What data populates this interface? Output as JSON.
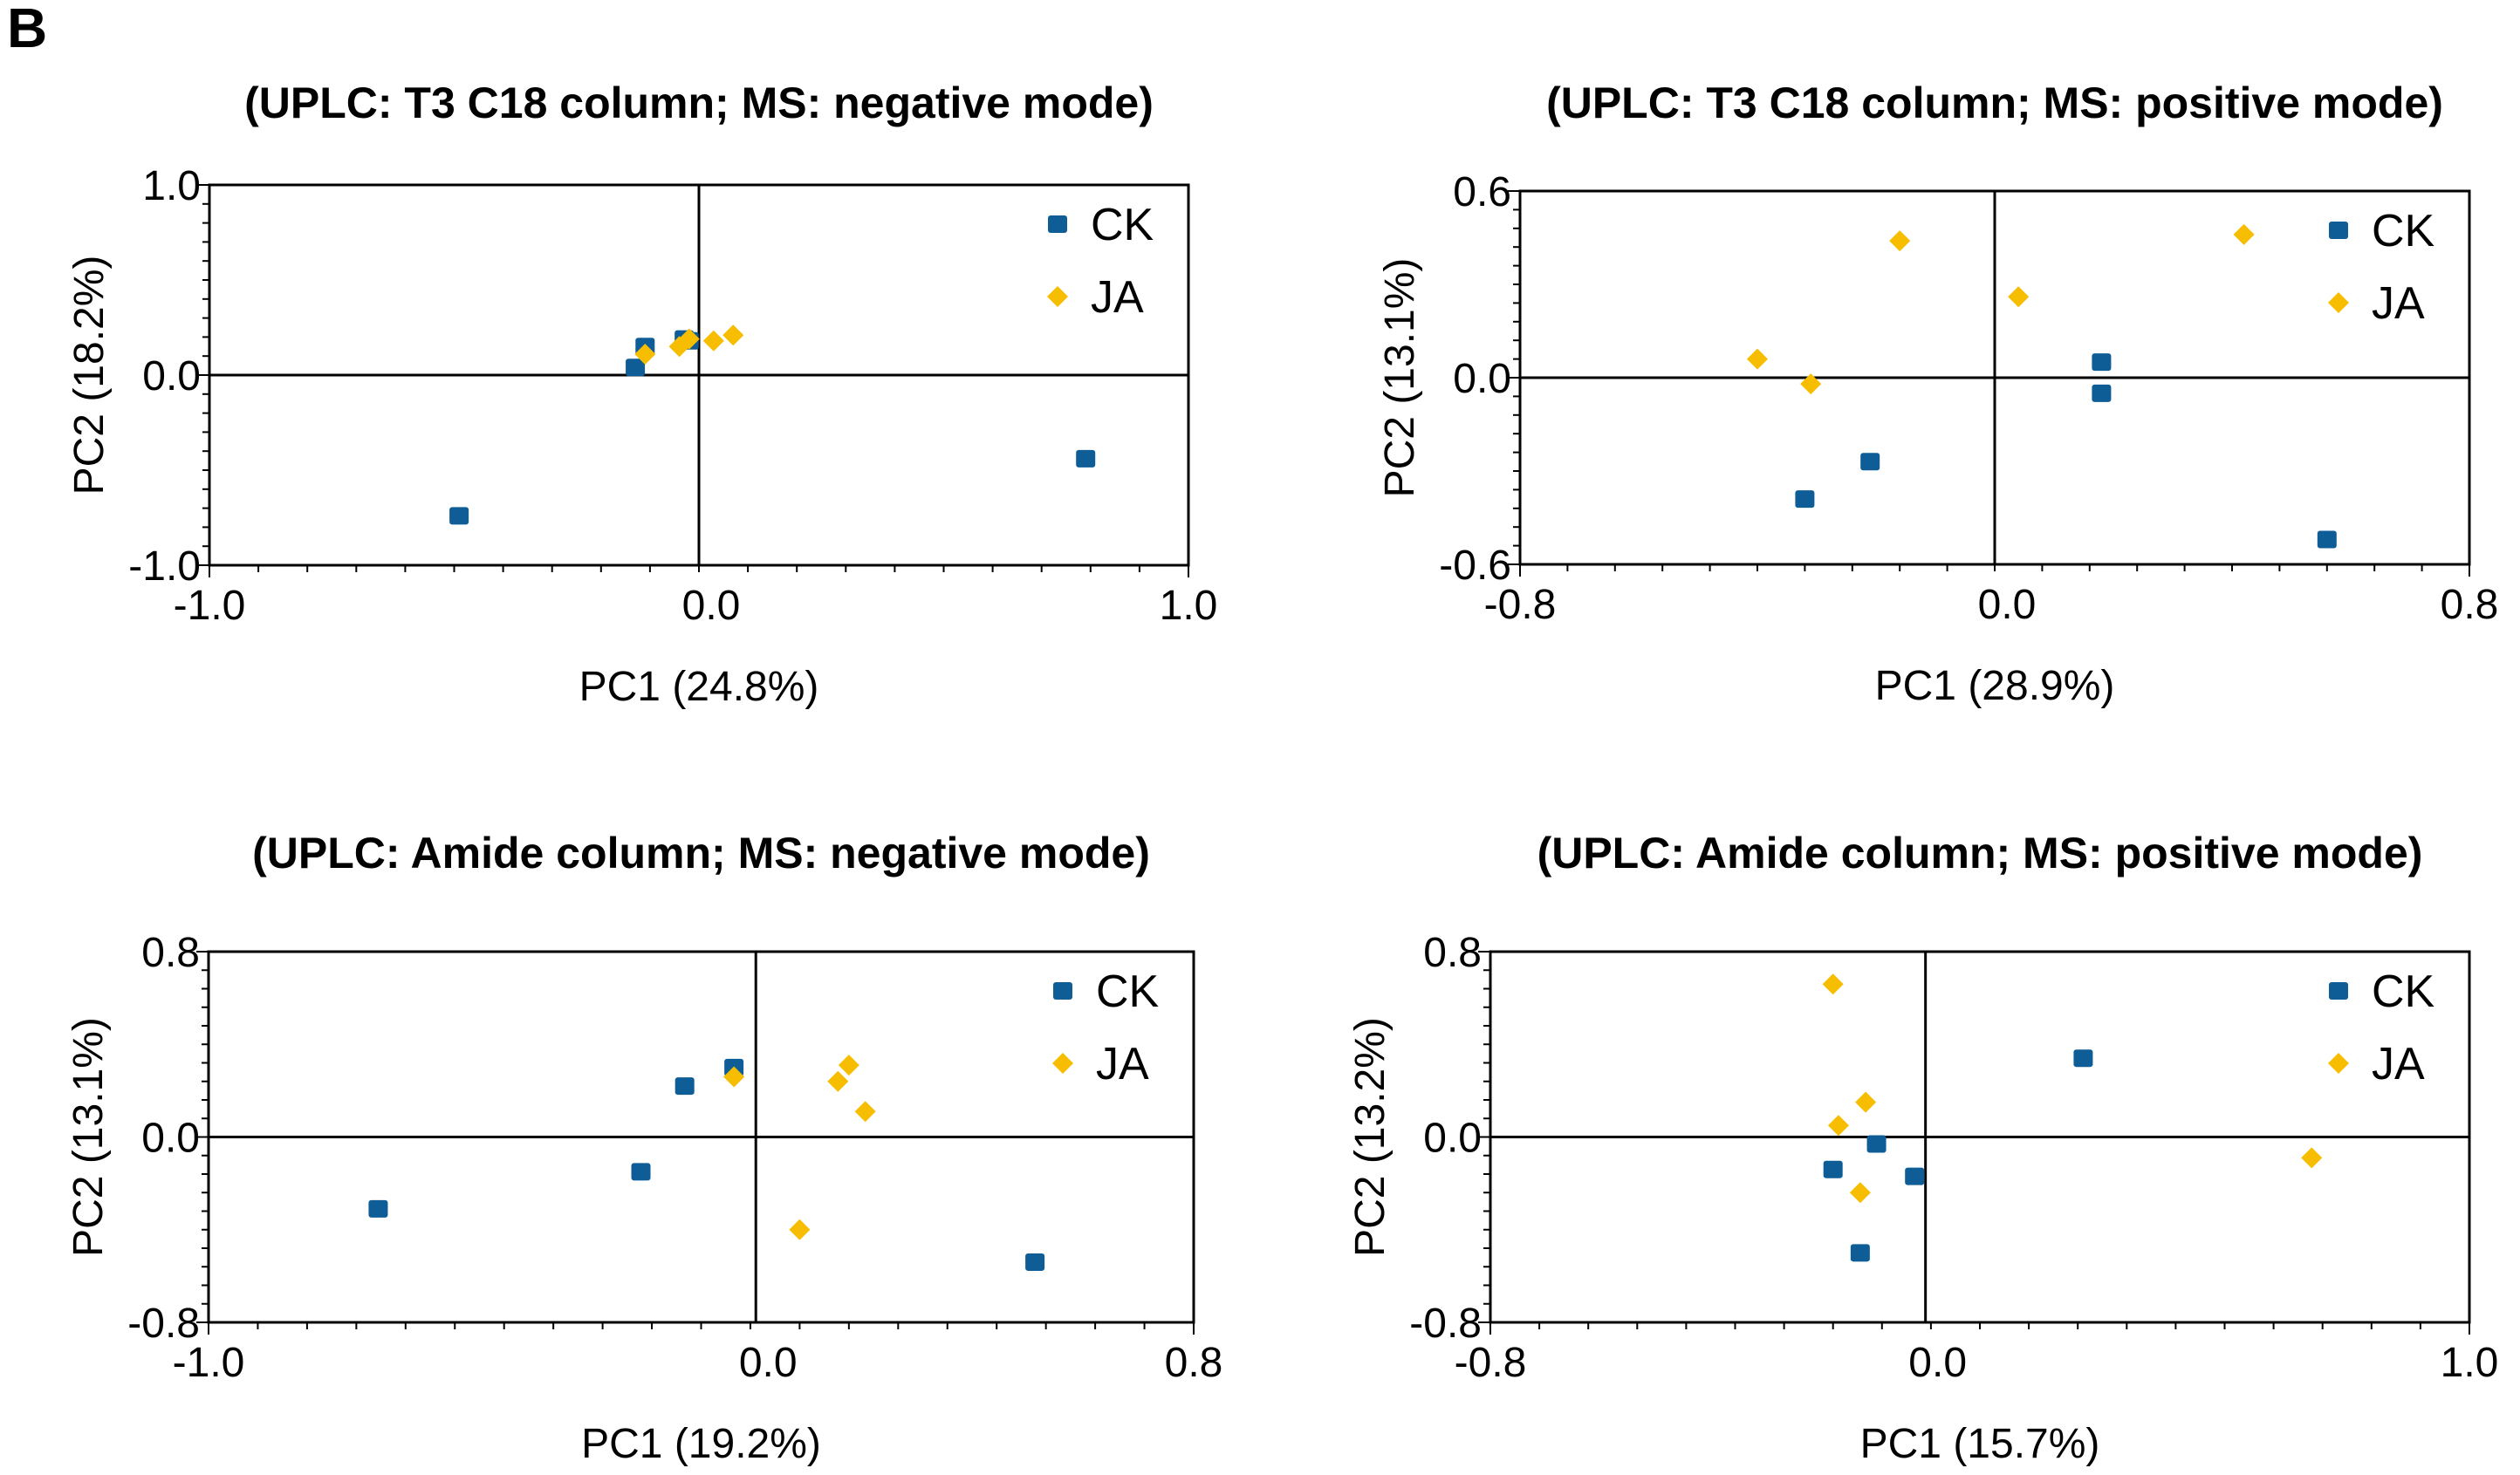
{
  "panel_letter": "B",
  "colors": {
    "CK": "#0f5d96",
    "JA": "#f7bd00",
    "axis": "#000000"
  },
  "chart_data": [
    {
      "type": "scatter",
      "title": "(UPLC: T3 C18 column; MS: negative mode)",
      "xlabel": "PC1 (24.8%)",
      "ylabel": "PC2 (18.2%)",
      "xlim": [
        -1.0,
        1.0
      ],
      "ylim": [
        -1.0,
        1.0
      ],
      "xticks": [
        "-1.0",
        "0.0",
        "1.0"
      ],
      "yticks": [
        "1.0",
        "0.0",
        "-1.0"
      ],
      "series": [
        {
          "name": "CK",
          "marker": "square",
          "points": [
            [
              -0.49,
              -0.74
            ],
            [
              0.79,
              -0.44
            ],
            [
              -0.13,
              0.04
            ],
            [
              -0.11,
              0.15
            ],
            [
              -0.03,
              0.19
            ],
            [
              -0.02,
              0.18
            ]
          ]
        },
        {
          "name": "JA",
          "marker": "diamond",
          "points": [
            [
              -0.11,
              0.11
            ],
            [
              -0.04,
              0.15
            ],
            [
              0.03,
              0.18
            ],
            [
              0.07,
              0.21
            ],
            [
              -0.02,
              0.19
            ]
          ]
        }
      ]
    },
    {
      "type": "scatter",
      "title": "(UPLC: T3 C18 column; MS: positive mode)",
      "xlabel": "PC1 (28.9%)",
      "ylabel": "PC2 (13.1%)",
      "xlim": [
        -0.8,
        0.8
      ],
      "ylim": [
        -0.6,
        0.6
      ],
      "xticks": [
        "-0.8",
        "0.0",
        "0.8"
      ],
      "yticks": [
        "0.6",
        "0.0",
        "-0.6"
      ],
      "series": [
        {
          "name": "CK",
          "marker": "square",
          "points": [
            [
              0.18,
              0.05
            ],
            [
              0.18,
              -0.05
            ],
            [
              -0.21,
              -0.27
            ],
            [
              -0.32,
              -0.39
            ],
            [
              0.56,
              -0.52
            ]
          ]
        },
        {
          "name": "JA",
          "marker": "diamond",
          "points": [
            [
              -0.16,
              0.44
            ],
            [
              0.04,
              0.26
            ],
            [
              0.42,
              0.46
            ],
            [
              -0.4,
              0.06
            ],
            [
              -0.31,
              -0.02
            ]
          ]
        }
      ]
    },
    {
      "type": "scatter",
      "title": "(UPLC: Amide column; MS: negative mode)",
      "xlabel": "PC1 (19.2%)",
      "ylabel": "PC2 (13.1%)",
      "xlim": [
        -1.0,
        0.8
      ],
      "ylim": [
        -0.8,
        0.8
      ],
      "xticks": [
        "-1.0",
        "0.0",
        "0.8"
      ],
      "yticks": [
        "0.8",
        "0.0",
        "-0.8"
      ],
      "series": [
        {
          "name": "CK",
          "marker": "square",
          "points": [
            [
              -0.69,
              -0.31
            ],
            [
              -0.21,
              -0.15
            ],
            [
              -0.13,
              0.22
            ],
            [
              -0.04,
              0.3
            ],
            [
              0.51,
              -0.54
            ]
          ]
        },
        {
          "name": "JA",
          "marker": "diamond",
          "points": [
            [
              -0.04,
              0.26
            ],
            [
              0.15,
              0.24
            ],
            [
              0.17,
              0.31
            ],
            [
              0.2,
              0.11
            ],
            [
              0.08,
              -0.4
            ]
          ]
        }
      ]
    },
    {
      "type": "scatter",
      "title": "(UPLC: Amide column; MS: positive mode)",
      "xlabel": "PC1 (15.7%)",
      "ylabel": "PC2 (13.2%)",
      "xlim": [
        -0.8,
        1.0
      ],
      "ylim": [
        -0.8,
        0.8
      ],
      "xticks": [
        "-0.8",
        "0.0",
        "1.0"
      ],
      "yticks": [
        "0.8",
        "0.0",
        "-0.8"
      ],
      "series": [
        {
          "name": "CK",
          "marker": "square",
          "points": [
            [
              0.29,
              0.34
            ],
            [
              -0.09,
              -0.03
            ],
            [
              -0.02,
              -0.17
            ],
            [
              -0.17,
              -0.14
            ],
            [
              -0.12,
              -0.5
            ]
          ]
        },
        {
          "name": "JA",
          "marker": "diamond",
          "points": [
            [
              -0.17,
              0.66
            ],
            [
              -0.16,
              0.05
            ],
            [
              -0.11,
              0.15
            ],
            [
              -0.12,
              -0.24
            ],
            [
              0.71,
              -0.09
            ]
          ]
        }
      ]
    }
  ]
}
